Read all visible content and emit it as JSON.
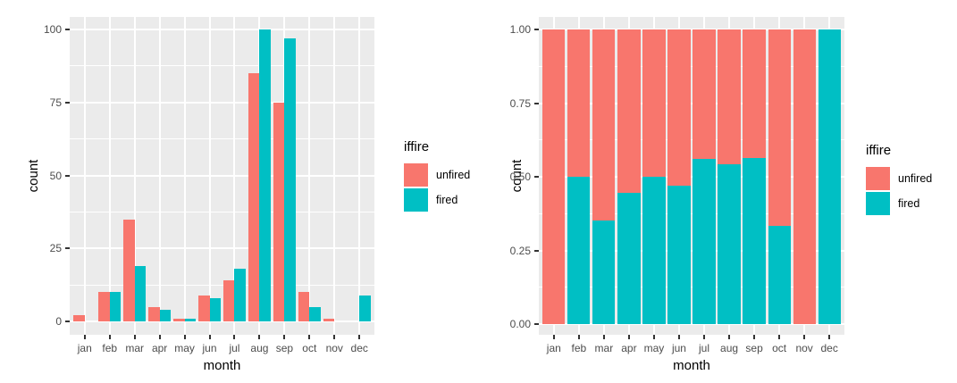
{
  "palette": {
    "unfired": "#F8766D",
    "fired": "#00BFC4",
    "panel_bg": "#EBEBEB",
    "grid": "#FFFFFF",
    "tick_label": "#4D4D4D",
    "axis_title": "#000000",
    "tick_mark": "#333333",
    "background": "#FFFFFF"
  },
  "chart_data": [
    {
      "type": "bar",
      "position": "dodge",
      "title": "",
      "xlabel": "month",
      "ylabel": "count",
      "legend_title": "iffire",
      "legend_position": "right",
      "grid": true,
      "categories": [
        "jan",
        "feb",
        "mar",
        "apr",
        "may",
        "jun",
        "jul",
        "aug",
        "sep",
        "oct",
        "nov",
        "dec"
      ],
      "series": [
        {
          "name": "unfired",
          "color": "#F8766D",
          "values": [
            2,
            10,
            35,
            5,
            1,
            9,
            14,
            85,
            75,
            10,
            1,
            0
          ]
        },
        {
          "name": "fired",
          "color": "#00BFC4",
          "values": [
            0,
            10,
            19,
            4,
            1,
            8,
            18,
            100,
            97,
            5,
            0,
            9
          ]
        }
      ],
      "y_tick_labels": [
        "0",
        "25",
        "50",
        "75",
        "100"
      ],
      "y_tick_values": [
        0,
        25,
        50,
        75,
        100
      ],
      "ylim": [
        0,
        100
      ]
    },
    {
      "type": "bar",
      "position": "fill",
      "title": "",
      "xlabel": "month",
      "ylabel": "count",
      "legend_title": "iffire",
      "legend_position": "right",
      "grid": true,
      "categories": [
        "jan",
        "feb",
        "mar",
        "apr",
        "may",
        "jun",
        "jul",
        "aug",
        "sep",
        "oct",
        "nov",
        "dec"
      ],
      "series": [
        {
          "name": "unfired",
          "color": "#F8766D",
          "values": [
            1.0,
            0.5,
            0.648,
            0.556,
            0.5,
            0.529,
            0.438,
            0.459,
            0.436,
            0.667,
            1.0,
            0.0
          ]
        },
        {
          "name": "fired",
          "color": "#00BFC4",
          "values": [
            0.0,
            0.5,
            0.352,
            0.444,
            0.5,
            0.471,
            0.562,
            0.541,
            0.564,
            0.333,
            0.0,
            1.0
          ]
        }
      ],
      "y_tick_labels": [
        "0.00",
        "0.25",
        "0.50",
        "0.75",
        "1.00"
      ],
      "y_tick_values": [
        0,
        0.25,
        0.5,
        0.75,
        1
      ],
      "ylim": [
        0,
        1
      ]
    }
  ]
}
